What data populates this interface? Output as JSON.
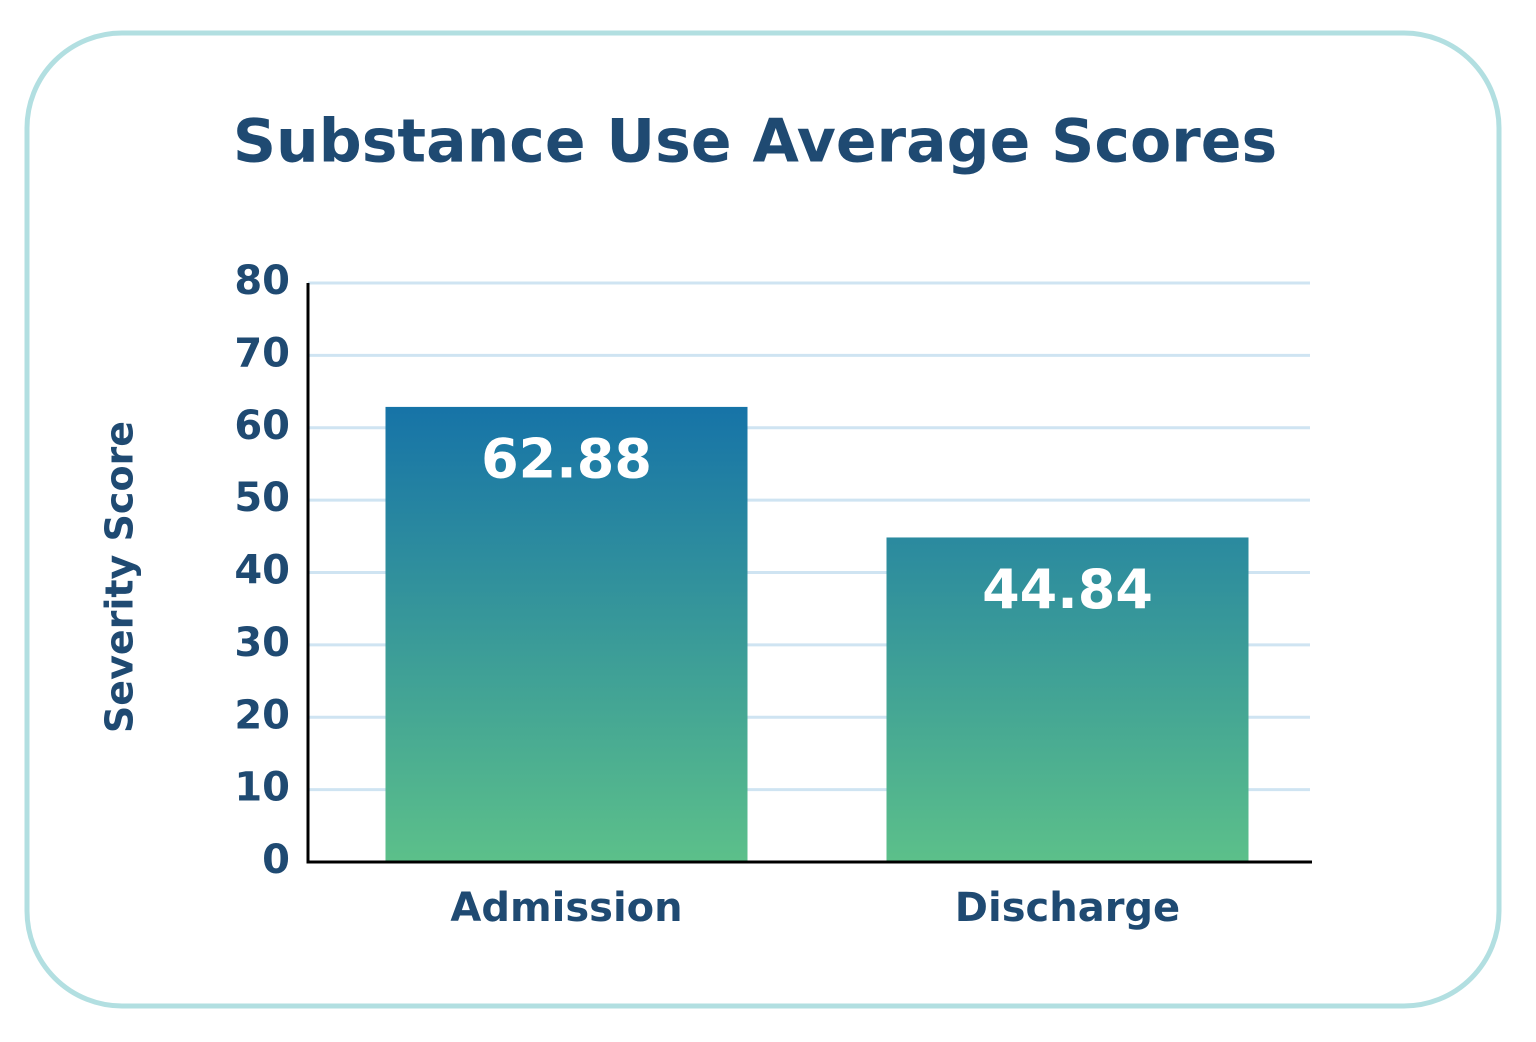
{
  "chart_data": {
    "type": "bar",
    "title": "Substance Use Average Scores",
    "y_label": "Severity Score",
    "categories": [
      "Admission",
      "Discharge"
    ],
    "values": [
      62.88,
      44.84
    ],
    "gradient": [
      "#1572a8",
      "#5cc08a"
    ],
    "ylim": [
      0,
      80
    ],
    "yticks": [
      0,
      10,
      20,
      30,
      40,
      50,
      60,
      70,
      80
    ],
    "grid": true
  }
}
